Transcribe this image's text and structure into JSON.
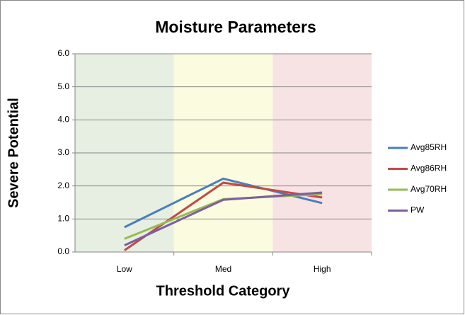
{
  "chart_data": {
    "type": "line",
    "title": "Moisture Parameters",
    "x_label": "Threshold Category",
    "y_label": "Severe Potential",
    "categories": [
      "Low",
      "Med",
      "High"
    ],
    "series": [
      {
        "name": "Avg85RH",
        "color": "#4a7ebb",
        "values": [
          0.75,
          2.22,
          1.48
        ]
      },
      {
        "name": "Avg86RH",
        "color": "#be4b48",
        "values": [
          0.05,
          2.1,
          1.65
        ]
      },
      {
        "name": "Avg70RH",
        "color": "#98b954",
        "values": [
          0.4,
          1.6,
          1.75
        ]
      },
      {
        "name": "PW",
        "color": "#7d5fa0",
        "values": [
          0.2,
          1.58,
          1.8
        ]
      }
    ],
    "ylim": [
      0,
      6
    ],
    "yticks": [
      {
        "value": 0,
        "label": "0.0"
      },
      {
        "value": 1,
        "label": "1.0"
      },
      {
        "value": 2,
        "label": "2.0"
      },
      {
        "value": 3,
        "label": "3.0"
      },
      {
        "value": 4,
        "label": "4.0"
      },
      {
        "value": 5,
        "label": "5.0"
      },
      {
        "value": 6,
        "label": "6.0"
      }
    ],
    "grid": true,
    "legend": "right"
  }
}
